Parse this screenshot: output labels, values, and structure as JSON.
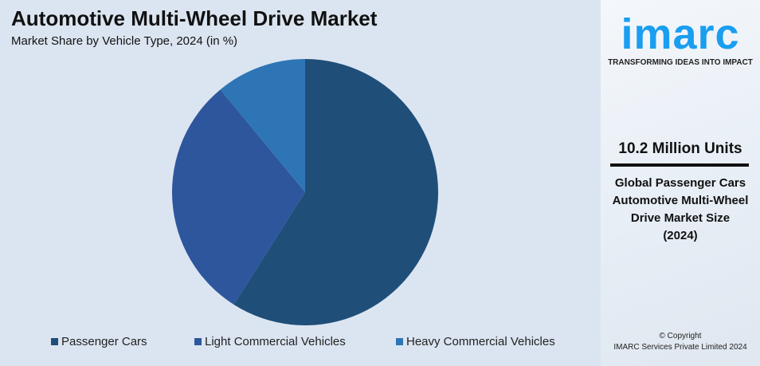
{
  "chart_data": {
    "type": "pie",
    "title": "Automotive Multi-Wheel Drive Market",
    "subtitle": "Market Share by Vehicle Type, 2024 (in %)",
    "categories": [
      "Passenger Cars",
      "Light Commercial Vehicles",
      "Heavy Commercial Vehicles"
    ],
    "values": [
      59,
      30,
      11
    ],
    "colors": [
      "#1f4e79",
      "#2e569c",
      "#2e75b6"
    ],
    "legend_position": "bottom"
  },
  "side": {
    "logo": "imarc",
    "tagline": "TRANSFORMING IDEAS INTO IMPACT",
    "stat": "10.2 Million Units",
    "desc_lines": [
      "Global Passenger Cars",
      "Automotive Multi-Wheel",
      "Drive Market Size",
      "(2024)"
    ],
    "copyright_lines": [
      "© Copyright",
      "IMARC Services Private Limited 2024"
    ]
  }
}
